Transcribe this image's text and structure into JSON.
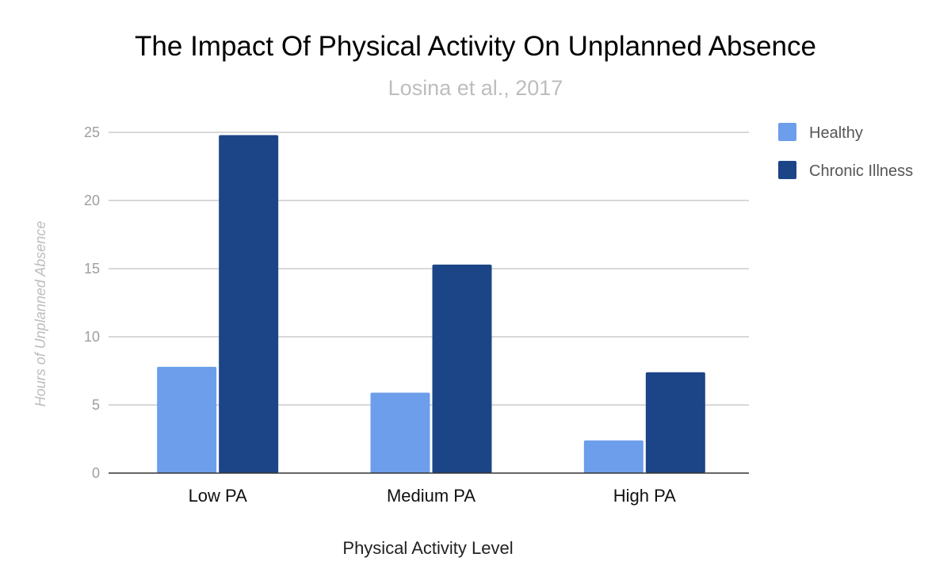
{
  "chart_data": {
    "type": "bar",
    "title": "The Impact Of Physical Activity On Unplanned Absence",
    "subtitle": "Losina et al., 2017",
    "xlabel": "Physical Activity Level",
    "ylabel": "Hours of Unplanned Absence",
    "categories": [
      "Low PA",
      "Medium PA",
      "High PA"
    ],
    "series": [
      {
        "name": "Healthy",
        "color": "#6d9eeb",
        "values": [
          7.8,
          5.9,
          2.4
        ]
      },
      {
        "name": "Chronic Illness",
        "color": "#1c4587",
        "values": [
          24.8,
          15.3,
          7.4
        ]
      }
    ],
    "ylim": [
      0,
      25
    ],
    "yticks": [
      0,
      5,
      10,
      15,
      20,
      25
    ],
    "grid": true,
    "legend_position": "right"
  }
}
